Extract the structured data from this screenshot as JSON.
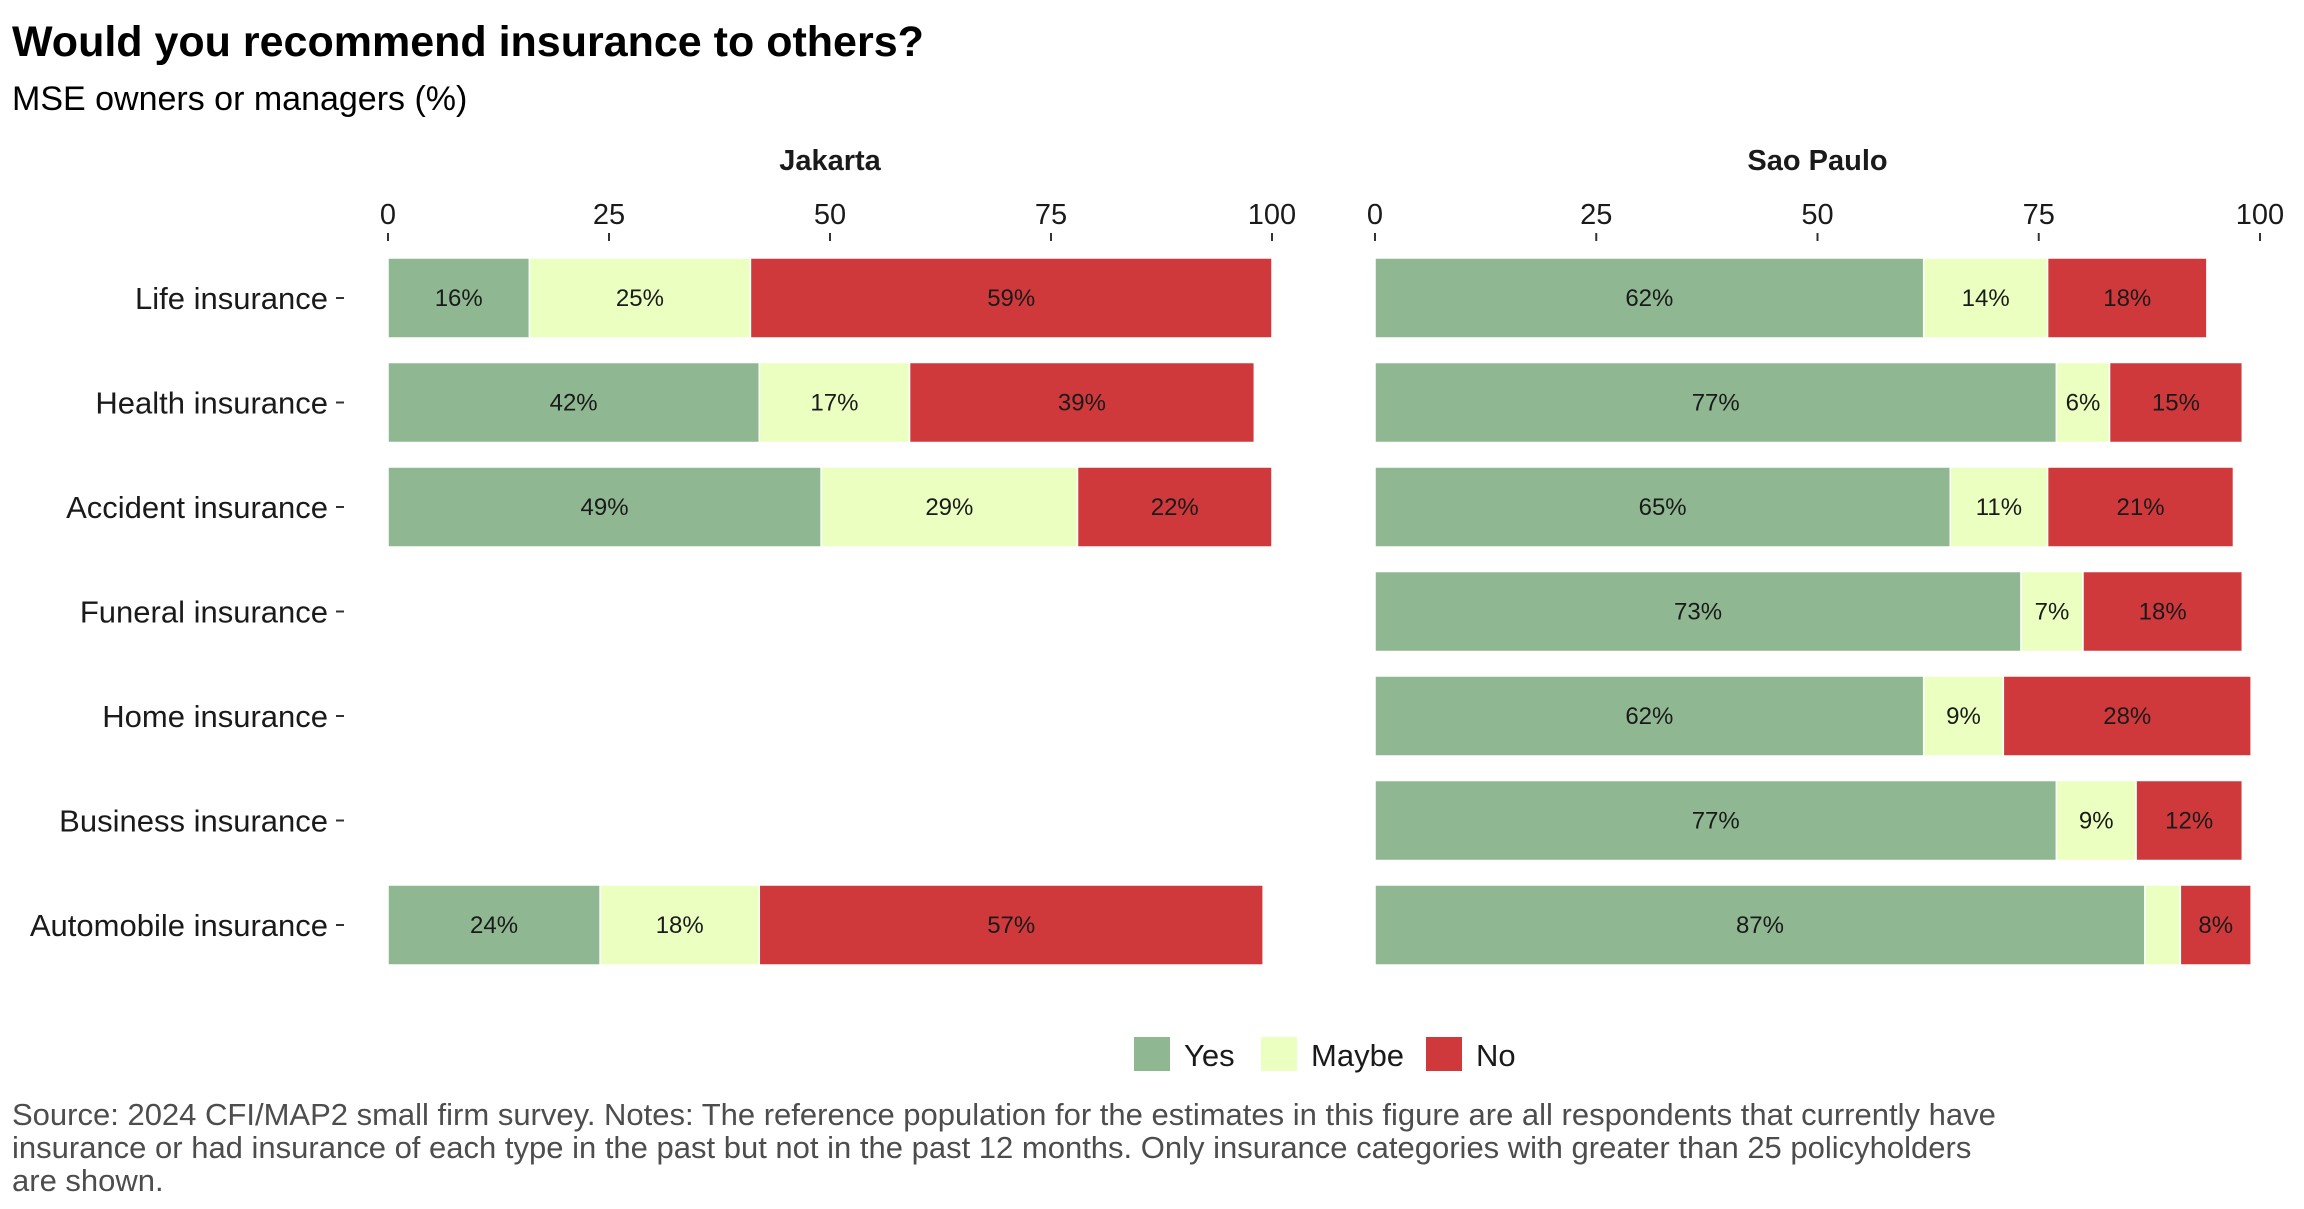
{
  "title": "Would you recommend insurance to others?",
  "subtitle": "MSE owners or managers (%)",
  "source_lines": [
    "Source: 2024 CFI/MAP2 small firm survey. Notes: The reference population for the estimates in this figure are all respondents that currently have",
    "insurance or had insurance of each type in the past but not in the past 12 months. Only insurance categories with greater than 25 policyholders",
    "are shown."
  ],
  "colors": {
    "Yes": "#8fb892",
    "Maybe": "#eaffc0",
    "No": "#d0393b"
  },
  "chart_data": {
    "type": "bar",
    "orientation": "horizontal",
    "stacked": true,
    "xlim": [
      0,
      100
    ],
    "x_ticks": [
      0,
      25,
      50,
      75,
      100
    ],
    "categories": [
      "Life insurance",
      "Health insurance",
      "Accident insurance",
      "Funeral insurance",
      "Home insurance",
      "Business insurance",
      "Automobile insurance"
    ],
    "legend": {
      "position": "bottom",
      "entries": [
        "Yes",
        "Maybe",
        "No"
      ]
    },
    "grid": false,
    "facets": [
      {
        "name": "Jakarta",
        "series": [
          {
            "name": "Yes",
            "values": [
              16,
              42,
              49,
              null,
              null,
              null,
              24
            ]
          },
          {
            "name": "Maybe",
            "values": [
              25,
              17,
              29,
              null,
              null,
              null,
              18
            ]
          },
          {
            "name": "No",
            "values": [
              59,
              39,
              22,
              null,
              null,
              null,
              57
            ]
          }
        ]
      },
      {
        "name": "Sao Paulo",
        "series": [
          {
            "name": "Yes",
            "values": [
              62,
              77,
              65,
              73,
              62,
              77,
              87
            ]
          },
          {
            "name": "Maybe",
            "values": [
              14,
              6,
              11,
              7,
              9,
              9,
              4
            ]
          },
          {
            "name": "No",
            "values": [
              18,
              15,
              21,
              18,
              28,
              12,
              8
            ]
          }
        ]
      }
    ],
    "label_threshold": 5
  }
}
